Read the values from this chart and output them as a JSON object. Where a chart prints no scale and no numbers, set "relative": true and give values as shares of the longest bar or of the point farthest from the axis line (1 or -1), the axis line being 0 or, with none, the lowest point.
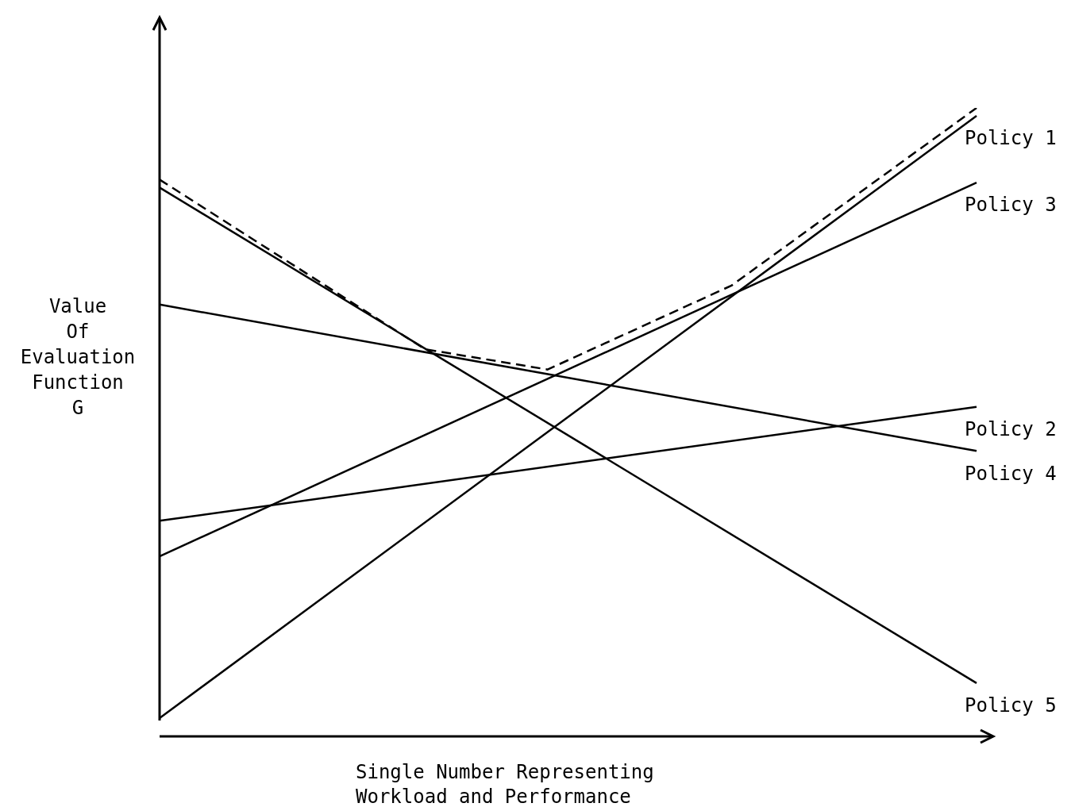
{
  "chart_data": {
    "type": "line",
    "relative": true,
    "xlabel": "Single Number Representing\nWorkload and Performance",
    "ylabel": "Value\nOf\nEvaluation\nFunction\nG",
    "legend": false,
    "marker": "none",
    "categories": [
      null,
      null,
      null,
      null,
      null,
      null,
      null,
      null,
      null,
      null,
      null,
      null,
      null,
      null,
      null,
      null,
      null,
      null,
      null,
      null,
      null,
      null,
      null,
      null,
      null,
      null,
      null,
      null,
      null,
      null,
      null,
      null,
      null,
      null,
      null,
      null,
      null,
      null,
      null,
      null,
      null
    ],
    "series": [
      {
        "name": "Policy 1",
        "color": "#000000",
        "values": [
          0.004,
          null,
          null,
          null,
          null,
          null,
          null,
          null,
          null,
          null,
          null,
          null,
          null,
          null,
          null,
          null,
          null,
          null,
          null,
          null,
          null,
          null,
          null,
          null,
          null,
          null,
          null,
          null,
          null,
          null,
          null,
          null,
          null,
          null,
          null,
          null,
          null,
          null,
          null,
          null,
          0.987
        ],
        "line_style": "solid"
      },
      {
        "name": "Policy 3",
        "color": "#000000",
        "values": [
          0.268,
          null,
          null,
          null,
          null,
          null,
          null,
          null,
          null,
          null,
          null,
          null,
          null,
          null,
          null,
          null,
          null,
          null,
          null,
          null,
          null,
          null,
          null,
          null,
          null,
          null,
          null,
          null,
          null,
          null,
          null,
          null,
          null,
          null,
          null,
          null,
          null,
          null,
          null,
          null,
          0.878
        ],
        "line_style": "solid"
      },
      {
        "name": "Policy 2",
        "color": "#000000",
        "values": [
          0.326,
          null,
          null,
          null,
          null,
          null,
          null,
          null,
          null,
          null,
          null,
          null,
          null,
          null,
          null,
          null,
          null,
          null,
          null,
          null,
          null,
          null,
          null,
          null,
          null,
          null,
          null,
          null,
          null,
          null,
          null,
          null,
          null,
          null,
          null,
          null,
          null,
          null,
          null,
          null,
          0.512
        ],
        "line_style": "solid"
      },
      {
        "name": "Policy 4",
        "color": "#000000",
        "values": [
          0.679,
          null,
          null,
          null,
          null,
          null,
          null,
          null,
          null,
          null,
          null,
          null,
          null,
          null,
          null,
          null,
          null,
          null,
          null,
          null,
          null,
          null,
          null,
          null,
          null,
          null,
          null,
          null,
          null,
          null,
          null,
          null,
          null,
          null,
          null,
          null,
          null,
          null,
          null,
          null,
          0.44
        ],
        "line_style": "solid"
      },
      {
        "name": "Policy 5",
        "color": "#000000",
        "values": [
          0.87,
          null,
          null,
          null,
          null,
          null,
          null,
          null,
          null,
          null,
          null,
          null,
          null,
          null,
          null,
          null,
          null,
          null,
          null,
          null,
          null,
          null,
          null,
          null,
          null,
          null,
          null,
          null,
          null,
          null,
          null,
          null,
          null,
          null,
          null,
          null,
          null,
          null,
          null,
          null,
          0.061
        ],
        "line_style": "solid"
      },
      {
        "color": "#000000",
        "values": [
          0.883,
          null,
          null,
          null,
          null,
          null,
          null,
          null,
          null,
          null,
          null,
          null,
          null,
          0.606,
          null,
          null,
          null,
          null,
          null,
          0.573,
          null,
          null,
          null,
          null,
          null,
          null,
          null,
          null,
          0.71,
          null,
          null,
          null,
          null,
          null,
          null,
          null,
          null,
          null,
          null,
          null,
          1
        ],
        "line_style": "dashed"
      }
    ]
  }
}
